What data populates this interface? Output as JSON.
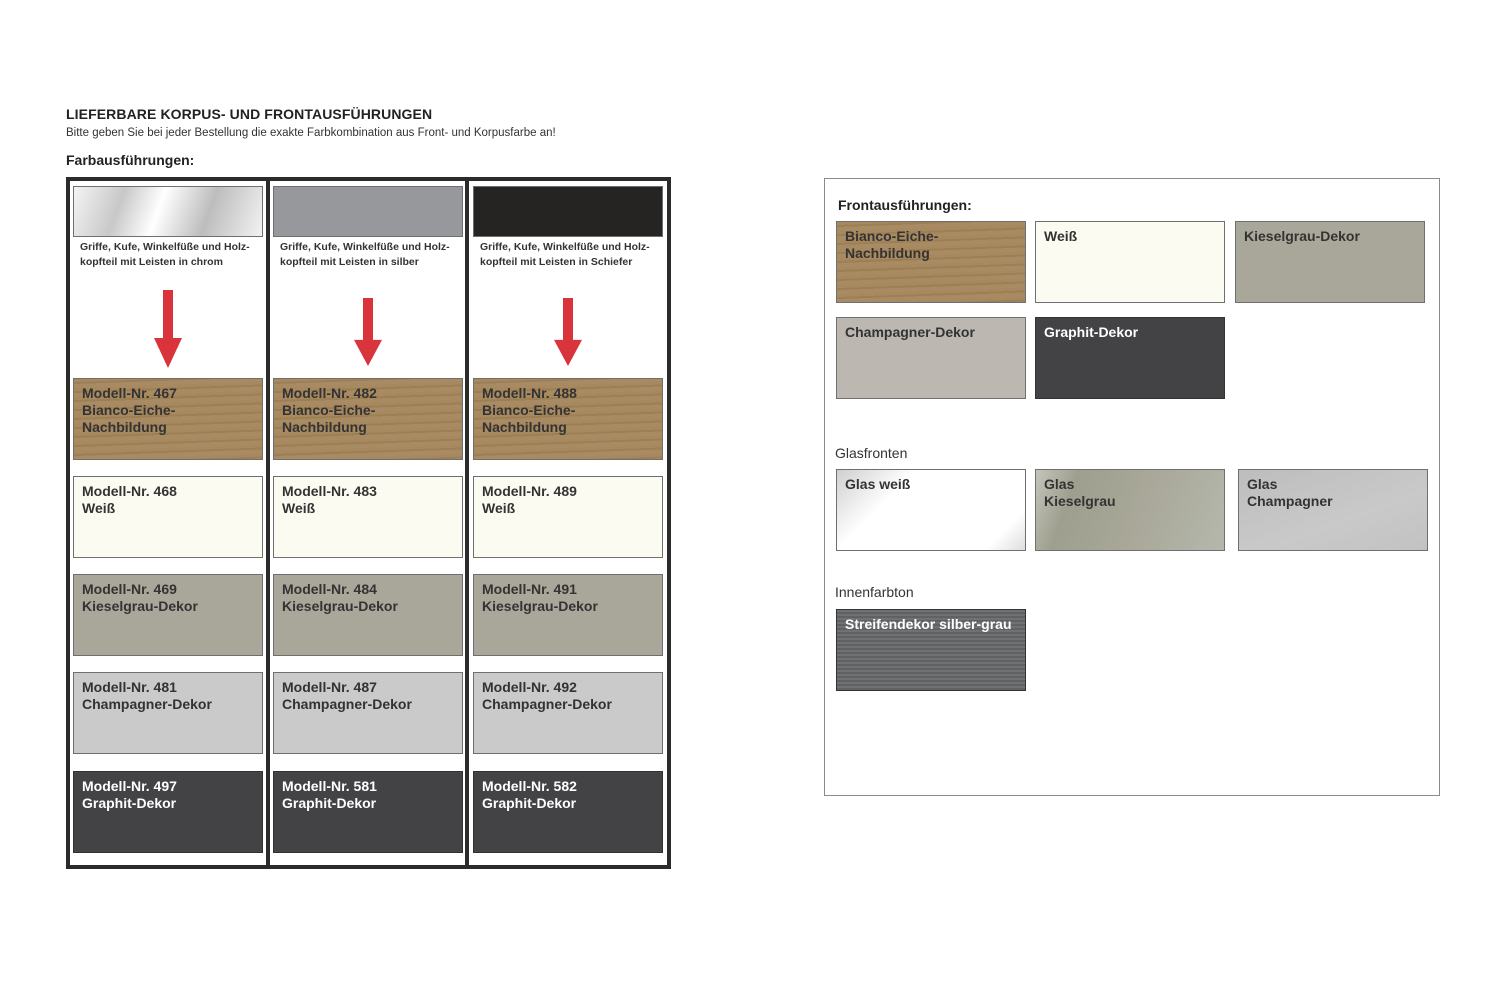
{
  "header": {
    "title": "LIEFERBARE KORPUS- UND FRONTAUSFÜHRUNGEN",
    "subtitle": "Bitte geben Sie bei jeder Bestellung die exakte Farbkombination aus Front- und Korpusfarbe an!",
    "section": "Farbausführungen:"
  },
  "colors": {
    "wood": "#a2855c",
    "white": "#fbfbf2",
    "kiesel": "#a9a79a",
    "champagne_left": "#cacaca",
    "champagne_right": "#bcb8b1",
    "graphit": "#434345",
    "arrow": "#d9333b",
    "silber": "#96989b",
    "schiefer": "#252423"
  },
  "columns": [
    {
      "hardware": "Griffe, Kufe, Winkelfüße und Holz-\nkopfteil mit Leisten in chrom",
      "hardware_swatch": "chrom",
      "models": [
        {
          "label": "Modell-Nr. 467\nBianco-Eiche-\nNachbildung",
          "decor": "wood"
        },
        {
          "label": "Modell-Nr. 468\nWeiß",
          "decor": "white"
        },
        {
          "label": "Modell-Nr. 469\nKieselgrau-Dekor",
          "decor": "kiesel"
        },
        {
          "label": "Modell-Nr. 481\nChampagner-Dekor",
          "decor": "champagne_left"
        },
        {
          "label": "Modell-Nr. 497\nGraphit-Dekor",
          "decor": "graphit"
        }
      ]
    },
    {
      "hardware": "Griffe, Kufe, Winkelfüße und Holz-\nkopfteil mit Leisten in silber",
      "hardware_swatch": "silber",
      "models": [
        {
          "label": "Modell-Nr. 482\nBianco-Eiche-\nNachbildung",
          "decor": "wood"
        },
        {
          "label": "Modell-Nr. 483\nWeiß",
          "decor": "white"
        },
        {
          "label": "Modell-Nr. 484\nKieselgrau-Dekor",
          "decor": "kiesel"
        },
        {
          "label": "Modell-Nr. 487\nChampagner-Dekor",
          "decor": "champagne_left"
        },
        {
          "label": "Modell-Nr. 581\nGraphit-Dekor",
          "decor": "graphit"
        }
      ]
    },
    {
      "hardware": "Griffe, Kufe, Winkelfüße und Holz-\nkopfteil mit Leisten in Schiefer",
      "hardware_swatch": "schiefer",
      "models": [
        {
          "label": "Modell-Nr. 488\nBianco-Eiche-\nNachbildung",
          "decor": "wood"
        },
        {
          "label": "Modell-Nr. 489\nWeiß",
          "decor": "white"
        },
        {
          "label": "Modell-Nr. 491\nKieselgrau-Dekor",
          "decor": "kiesel"
        },
        {
          "label": "Modell-Nr. 492\nChampagner-Dekor",
          "decor": "champagne_left"
        },
        {
          "label": "Modell-Nr. 582\nGraphit-Dekor",
          "decor": "graphit"
        }
      ]
    }
  ],
  "fronts": {
    "title": "Frontausführungen:",
    "items": [
      {
        "label": "Bianco-Eiche-\nNachbildung",
        "decor": "wood"
      },
      {
        "label": "Weiß",
        "decor": "white"
      },
      {
        "label": "Kieselgrau-Dekor",
        "decor": "kiesel"
      },
      {
        "label": "Champagner-Dekor",
        "decor": "champagne_right"
      },
      {
        "label": "Graphit-Dekor",
        "decor": "graphit"
      }
    ]
  },
  "glass": {
    "title": "Glasfronten",
    "items": [
      {
        "label": "Glas weiß",
        "decor": "glass-white"
      },
      {
        "label": "Glas\nKieselgrau",
        "decor": "glass-kiesel"
      },
      {
        "label": "Glas\nChampagner",
        "decor": "glass-champagner"
      }
    ]
  },
  "interior": {
    "title": "Innenfarbton",
    "items": [
      {
        "label": "Streifendekor silber-grau",
        "decor": "stripes"
      }
    ]
  }
}
